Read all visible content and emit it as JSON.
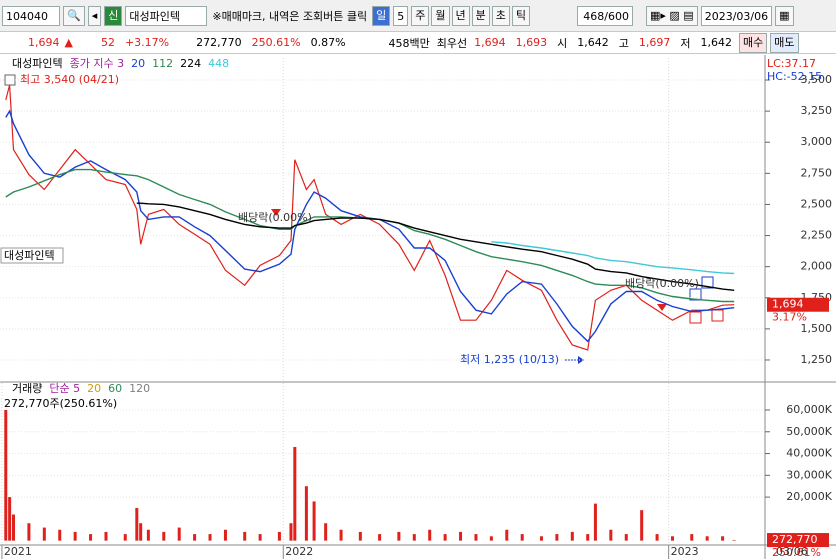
{
  "toolbar": {
    "code": "104040",
    "badge": "신",
    "name": "대성파인텍",
    "notice": "※매매마크, 내역은 조회버튼 클릭",
    "period": "일",
    "period_count": "5",
    "units": [
      "주",
      "월",
      "년",
      "분",
      "초",
      "틱"
    ],
    "count": "468/600",
    "date": "2023/03/06"
  },
  "quote": {
    "price": "1,694",
    "arrow": "▲",
    "change": "52",
    "change_pct": "+3.17%",
    "volume": "272,770",
    "volume_ratio": "250.61%",
    "turnover": "0.87%",
    "amount": "458백만",
    "best_label": "최우선",
    "ask": "1,694",
    "bid": "1,693",
    "open_label": "시",
    "open": "1,642",
    "high_label": "고",
    "high": "1,697",
    "low_label": "저",
    "low": "1,642",
    "buy": "매수",
    "sell": "매도"
  },
  "chart_data": [
    {
      "type": "line",
      "x": [
        2021.28,
        2021.29,
        2021.3,
        2021.34,
        2021.38,
        2021.42,
        2021.46,
        2021.5,
        2021.54,
        2021.59,
        2021.62,
        2021.63,
        2021.65,
        2021.69,
        2021.73,
        2021.77,
        2021.81,
        2021.85,
        2021.9,
        2021.94,
        2021.99,
        2022.02,
        2022.03,
        2022.06,
        2022.08,
        2022.11,
        2022.15,
        2022.2,
        2022.25,
        2022.3,
        2022.34,
        2022.38,
        2022.42,
        2022.46,
        2022.5,
        2022.54,
        2022.58,
        2022.62,
        2022.67,
        2022.71,
        2022.75,
        2022.79,
        2022.81,
        2022.85,
        2022.89,
        2022.93,
        2022.97,
        2023.01,
        2023.06,
        2023.1,
        2023.14,
        2023.17
      ],
      "series": [
        {
          "name": "대성파인텍",
          "color": "#e0201a",
          "values": [
            3340,
            3460,
            2940,
            2740,
            2620,
            2780,
            2940,
            2820,
            2700,
            2660,
            2460,
            2180,
            2420,
            2460,
            2340,
            2260,
            2180,
            1970,
            1850,
            2010,
            2090,
            2210,
            2860,
            2620,
            2700,
            2420,
            2340,
            2420,
            2340,
            2180,
            1970,
            2210,
            1930,
            1570,
            1570,
            1730,
            1970,
            1890,
            1810,
            1570,
            1370,
            1330,
            1730,
            1810,
            1850,
            1730,
            1650,
            1570,
            1650,
            1650,
            1690,
            1694
          ]
        },
        {
          "name": "20",
          "color": "#1a3fd0",
          "values": [
            3200,
            3250,
            3150,
            2900,
            2750,
            2720,
            2800,
            2850,
            2780,
            2700,
            2600,
            2450,
            2380,
            2400,
            2400,
            2320,
            2250,
            2130,
            1980,
            1960,
            2020,
            2100,
            2300,
            2500,
            2600,
            2550,
            2450,
            2400,
            2380,
            2300,
            2150,
            2150,
            2050,
            1800,
            1650,
            1620,
            1780,
            1880,
            1860,
            1700,
            1520,
            1400,
            1480,
            1700,
            1800,
            1800,
            1730,
            1680,
            1640,
            1650,
            1660,
            1670
          ]
        },
        {
          "name": "112",
          "color": "#2e8b57",
          "values": [
            2560,
            2580,
            2600,
            2640,
            2690,
            2740,
            2780,
            2780,
            2760,
            2740,
            2730,
            2720,
            2700,
            2640,
            2580,
            2540,
            2500,
            2440,
            2380,
            2330,
            2300,
            2300,
            2330,
            2370,
            2400,
            2400,
            2400,
            2390,
            2380,
            2350,
            2290,
            2260,
            2220,
            2170,
            2120,
            2080,
            2060,
            2040,
            2010,
            1970,
            1930,
            1880,
            1860,
            1850,
            1850,
            1830,
            1790,
            1760,
            1740,
            1730,
            1720,
            1720
          ]
        },
        {
          "name": "224",
          "color": "#000000",
          "values": [
            null,
            null,
            null,
            null,
            null,
            null,
            null,
            null,
            null,
            null,
            2510,
            2510,
            2505,
            2500,
            2480,
            2450,
            2420,
            2380,
            2340,
            2320,
            2310,
            2310,
            2330,
            2350,
            2370,
            2380,
            2390,
            2390,
            2380,
            2350,
            2310,
            2280,
            2250,
            2220,
            2200,
            2180,
            2160,
            2140,
            2120,
            2090,
            2060,
            2020,
            1980,
            1960,
            1950,
            1920,
            1900,
            1880,
            1860,
            1840,
            1820,
            1810
          ]
        },
        {
          "name": "448",
          "color": "#40c8d8",
          "values": [
            null,
            null,
            null,
            null,
            null,
            null,
            null,
            null,
            null,
            null,
            null,
            null,
            null,
            null,
            null,
            null,
            null,
            null,
            null,
            null,
            null,
            null,
            null,
            null,
            null,
            null,
            null,
            null,
            null,
            null,
            null,
            null,
            null,
            null,
            null,
            2200,
            2190,
            2170,
            2150,
            2130,
            2110,
            2090,
            2070,
            2050,
            2040,
            2020,
            2000,
            1990,
            1975,
            1960,
            1950,
            1945
          ]
        }
      ],
      "ma_label": {
        "text": "종가 지수 3",
        "color": "#a020a0"
      },
      "xlim": [
        2021.265,
        2023.25
      ],
      "xticks": [
        2022,
        2023
      ],
      "ylim": [
        1073,
        3677
      ],
      "yticks": [
        {
          "value": 1250,
          "label": "1,250"
        },
        {
          "value": 1500,
          "label": "1,500"
        },
        {
          "value": 1750,
          "label": "1,750"
        },
        {
          "value": 2000,
          "label": "2,000"
        },
        {
          "value": 2250,
          "label": "2,250"
        },
        {
          "value": 2500,
          "label": "2,500"
        },
        {
          "value": 2750,
          "label": "2,750"
        },
        {
          "value": 3000,
          "label": "3,000"
        },
        {
          "value": 3250,
          "label": "3,250"
        },
        {
          "value": 3500,
          "label": "3,500"
        }
      ],
      "grid": true,
      "high_note": "최고 3,540 (04/21)",
      "low_note": "최저 1,235 (10/13)",
      "events": [
        "배당락(0.00%)",
        "배당락(0.00%)"
      ],
      "name_tag": "대성파인텍",
      "lc": "LC:37.17",
      "hc": "HC:-52.15",
      "last_label": "1,694",
      "last_pct": "3.17%"
    },
    {
      "type": "bar",
      "x": [
        2021.28,
        2021.29,
        2021.3,
        2021.34,
        2021.38,
        2021.42,
        2021.46,
        2021.5,
        2021.54,
        2021.59,
        2021.62,
        2021.63,
        2021.65,
        2021.69,
        2021.73,
        2021.77,
        2021.81,
        2021.85,
        2021.9,
        2021.94,
        2021.99,
        2022.02,
        2022.03,
        2022.06,
        2022.08,
        2022.11,
        2022.15,
        2022.2,
        2022.25,
        2022.3,
        2022.34,
        2022.38,
        2022.42,
        2022.46,
        2022.5,
        2022.54,
        2022.58,
        2022.62,
        2022.67,
        2022.71,
        2022.75,
        2022.79,
        2022.81,
        2022.85,
        2022.89,
        2022.93,
        2022.97,
        2023.01,
        2023.06,
        2023.1,
        2023.14,
        2023.17
      ],
      "series": [
        {
          "name": "거래량",
          "color": "#e0201a",
          "values": [
            60000000,
            20000000,
            12000000,
            8000000,
            6000000,
            5000000,
            4000000,
            3000000,
            4000000,
            3000000,
            15000000,
            8000000,
            5000000,
            4000000,
            6000000,
            3000000,
            3000000,
            5000000,
            4000000,
            3000000,
            4000000,
            8000000,
            43000000,
            25000000,
            18000000,
            8000000,
            5000000,
            4000000,
            3000000,
            4000000,
            3000000,
            5000000,
            3000000,
            4000000,
            3000000,
            2000000,
            5000000,
            3000000,
            2000000,
            3000000,
            4000000,
            3000000,
            17000000,
            5000000,
            3000000,
            14000000,
            3000000,
            2000000,
            3000000,
            2000000,
            2000000,
            272770
          ]
        }
      ],
      "ma_labels": [
        {
          "text": "단순 5",
          "color": "#a020a0"
        },
        {
          "text": "20",
          "color": "#d0a000"
        },
        {
          "text": "60",
          "color": "#2e8b57"
        },
        {
          "text": "120",
          "color": "#808080"
        }
      ],
      "xlim": [
        2021.265,
        2023.25
      ],
      "xticks": [
        {
          "value": 2021.27,
          "label": "2021"
        },
        2022,
        2023
      ],
      "ylim": [
        -2000000,
        72400000
      ],
      "yticks": [
        {
          "value": 20000000,
          "label": "20,000K"
        },
        {
          "value": 30000000,
          "label": "30,000K"
        },
        {
          "value": 40000000,
          "label": "40,000K"
        },
        {
          "value": 50000000,
          "label": "50,000K"
        },
        {
          "value": 60000000,
          "label": "60,000K"
        }
      ],
      "grid": true,
      "volume_note": "272,770주(250.61%)",
      "last_label": "272,770",
      "last_pct": "250.61%",
      "end_label": "03/06"
    }
  ]
}
